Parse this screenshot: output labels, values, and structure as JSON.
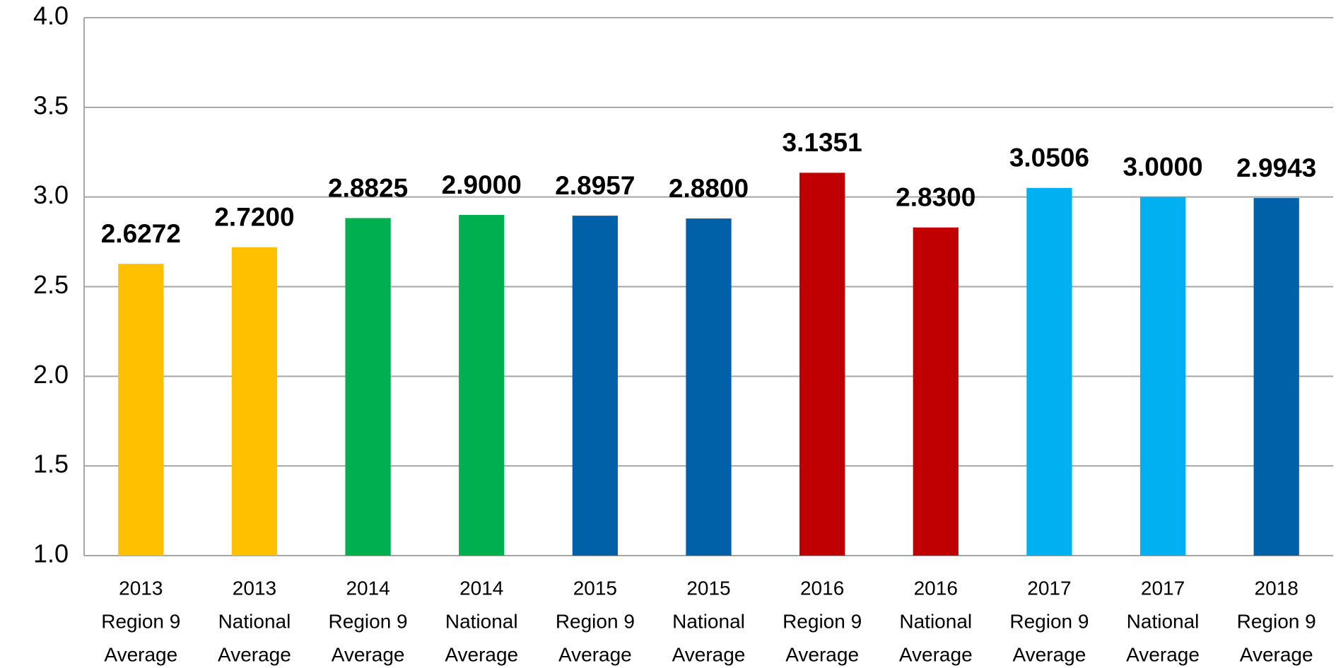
{
  "chart_data": {
    "type": "bar",
    "categories": [
      [
        "2013",
        "Region 9",
        "Average"
      ],
      [
        "2013",
        "National",
        "Average"
      ],
      [
        "2014",
        "Region 9",
        "Average"
      ],
      [
        "2014",
        "National",
        "Average"
      ],
      [
        "2015",
        "Region 9",
        "Average"
      ],
      [
        "2015",
        "National",
        "Average"
      ],
      [
        "2016",
        "Region 9",
        "Average"
      ],
      [
        "2016",
        "National",
        "Average"
      ],
      [
        "2017",
        "Region 9",
        "Average"
      ],
      [
        "2017",
        "National",
        "Average"
      ],
      [
        "2018",
        "Region 9",
        "Average"
      ]
    ],
    "values": [
      2.6272,
      2.72,
      2.8825,
      2.9,
      2.8957,
      2.88,
      3.1351,
      2.83,
      3.0506,
      3.0,
      2.9943
    ],
    "value_labels": [
      "2.6272",
      "2.7200",
      "2.8825",
      "2.9000",
      "2.8957",
      "2.8800",
      "3.1351",
      "2.8300",
      "3.0506",
      "3.0000",
      "2.9943"
    ],
    "colors": [
      "#ffc000",
      "#ffc000",
      "#00b050",
      "#00b050",
      "#0060a8",
      "#0060a8",
      "#c00000",
      "#c00000",
      "#00b0f0",
      "#00b0f0",
      "#0060a8"
    ],
    "ylim": [
      1.0,
      4.0
    ],
    "yticks": [
      {
        "value": 1.0,
        "label": "1.0"
      },
      {
        "value": 1.5,
        "label": "1.5"
      },
      {
        "value": 2.0,
        "label": "2.0"
      },
      {
        "value": 2.5,
        "label": "2.5"
      },
      {
        "value": 3.0,
        "label": "3.0"
      },
      {
        "value": 3.5,
        "label": "3.5"
      },
      {
        "value": 4.0,
        "label": "4.0"
      }
    ],
    "grid": true
  }
}
